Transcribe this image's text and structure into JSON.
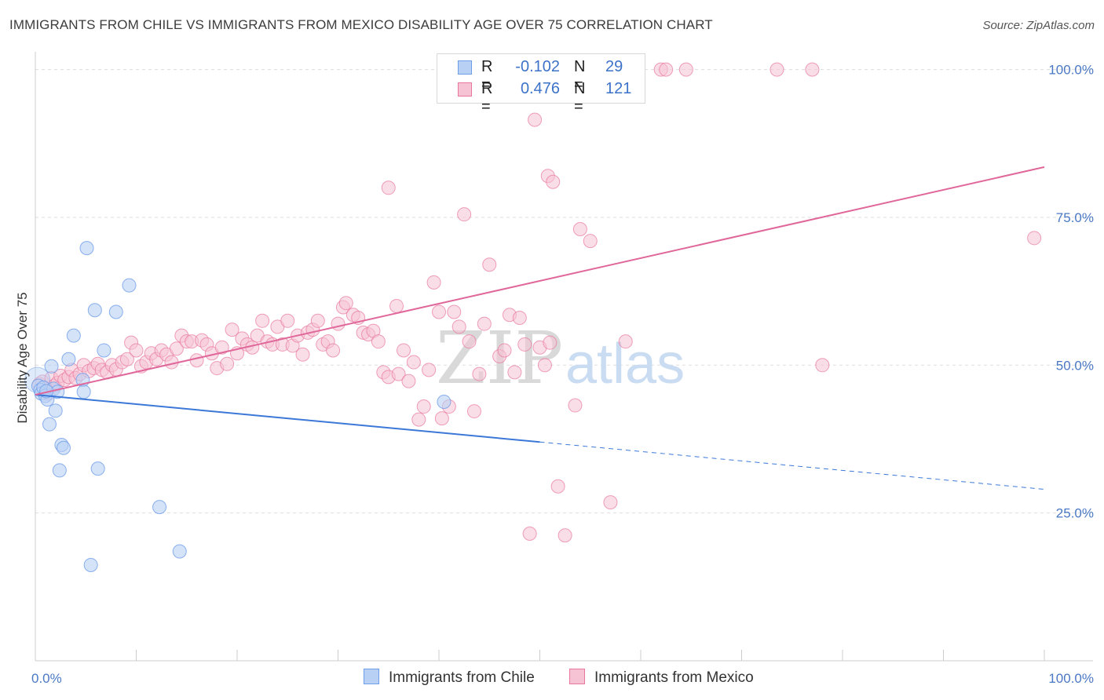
{
  "title": "IMMIGRANTS FROM CHILE VS IMMIGRANTS FROM MEXICO DISABILITY AGE OVER 75 CORRELATION CHART",
  "source": "Source: ZipAtlas.com",
  "watermark": {
    "part1": "ZIP",
    "part2": "atlas"
  },
  "legend": {
    "rows": [
      {
        "r_label": "R =",
        "r_value": "-0.102",
        "n_label": "N =",
        "n_value": "29"
      },
      {
        "r_label": "R =",
        "r_value": "0.476",
        "n_label": "N =",
        "n_value": "121"
      }
    ]
  },
  "colors": {
    "chile": "#6f9ee8",
    "chile_fill": "#b9d0f5",
    "mexico": "#e8779e",
    "mexico_fill": "#f6c3d4",
    "axis_text": "#4a78c4",
    "grid": "#dddddd"
  },
  "chart_data": {
    "type": "scatter",
    "title": "IMMIGRANTS FROM CHILE VS IMMIGRANTS FROM MEXICO DISABILITY AGE OVER 75 CORRELATION CHART",
    "xlabel": "",
    "ylabel": "Disability Age Over 75",
    "xlim": [
      0,
      100
    ],
    "ylim": [
      0,
      103
    ],
    "x_tick_labels": [
      "0.0%",
      "100.0%"
    ],
    "y_ticks": [
      25,
      50,
      75,
      100
    ],
    "y_tick_labels": [
      "25.0%",
      "50.0%",
      "75.0%",
      "100.0%"
    ],
    "legend_position": "bottom",
    "series": [
      {
        "name": "Immigrants from Chile",
        "r": -0.102,
        "n": 29,
        "trend": {
          "x0": 0,
          "y0": 45.0,
          "x1": 50,
          "y1": 37.0,
          "dashed_to_x": 100,
          "dashed_to_y": 29.0
        },
        "points": [
          [
            0.3,
            46.5
          ],
          [
            0.5,
            45.8
          ],
          [
            0.6,
            45.2
          ],
          [
            0.8,
            46.2
          ],
          [
            1.0,
            44.8
          ],
          [
            1.2,
            44.2
          ],
          [
            1.4,
            40.0
          ],
          [
            1.6,
            49.8
          ],
          [
            1.8,
            46.0
          ],
          [
            2.0,
            42.3
          ],
          [
            2.2,
            45.5
          ],
          [
            2.4,
            32.2
          ],
          [
            2.6,
            36.5
          ],
          [
            2.8,
            36.0
          ],
          [
            3.3,
            51.0
          ],
          [
            3.8,
            55.0
          ],
          [
            4.7,
            47.5
          ],
          [
            4.8,
            45.5
          ],
          [
            5.1,
            69.8
          ],
          [
            5.5,
            16.2
          ],
          [
            5.9,
            59.3
          ],
          [
            6.2,
            32.5
          ],
          [
            6.8,
            52.5
          ],
          [
            8.0,
            59.0
          ],
          [
            9.3,
            63.5
          ],
          [
            12.3,
            26.0
          ],
          [
            14.3,
            18.5
          ],
          [
            1.1,
            45.6
          ],
          [
            40.5,
            43.8
          ]
        ]
      },
      {
        "name": "Immigrants from Mexico",
        "r": 0.476,
        "n": 121,
        "trend": {
          "x0": 0,
          "y0": 45.0,
          "x1": 100,
          "y1": 83.5
        },
        "points": [
          [
            0.4,
            46.8
          ],
          [
            0.7,
            47.2
          ],
          [
            1.0,
            46.0
          ],
          [
            1.3,
            45.2
          ],
          [
            1.6,
            47.8
          ],
          [
            1.9,
            46.5
          ],
          [
            2.2,
            47.0
          ],
          [
            2.5,
            48.2
          ],
          [
            2.9,
            47.5
          ],
          [
            3.3,
            48.0
          ],
          [
            3.6,
            49.2
          ],
          [
            4.0,
            47.8
          ],
          [
            4.4,
            48.5
          ],
          [
            4.8,
            50.0
          ],
          [
            5.3,
            49.0
          ],
          [
            5.8,
            49.5
          ],
          [
            6.2,
            50.2
          ],
          [
            6.6,
            49.2
          ],
          [
            7.1,
            48.8
          ],
          [
            7.6,
            50.0
          ],
          [
            8.0,
            49.3
          ],
          [
            8.6,
            50.5
          ],
          [
            9.1,
            51.0
          ],
          [
            9.5,
            53.8
          ],
          [
            10.0,
            52.5
          ],
          [
            10.5,
            49.8
          ],
          [
            11.0,
            50.5
          ],
          [
            11.5,
            52.0
          ],
          [
            12.0,
            51.0
          ],
          [
            12.5,
            52.5
          ],
          [
            13.0,
            51.8
          ],
          [
            13.5,
            50.5
          ],
          [
            14.0,
            52.8
          ],
          [
            14.5,
            55.0
          ],
          [
            15.0,
            54.0
          ],
          [
            15.5,
            54.0
          ],
          [
            16.0,
            50.8
          ],
          [
            16.5,
            54.2
          ],
          [
            17.0,
            53.5
          ],
          [
            17.5,
            52.0
          ],
          [
            18.0,
            49.5
          ],
          [
            18.5,
            53.0
          ],
          [
            19.0,
            50.2
          ],
          [
            19.5,
            56.0
          ],
          [
            20.0,
            52.0
          ],
          [
            20.5,
            54.5
          ],
          [
            21.0,
            53.5
          ],
          [
            21.5,
            53.0
          ],
          [
            22.0,
            55.0
          ],
          [
            22.5,
            57.5
          ],
          [
            23.0,
            54.0
          ],
          [
            23.5,
            53.5
          ],
          [
            24.0,
            56.5
          ],
          [
            24.5,
            53.5
          ],
          [
            25.0,
            57.5
          ],
          [
            25.5,
            53.3
          ],
          [
            26.0,
            55.0
          ],
          [
            26.5,
            51.8
          ],
          [
            27.0,
            55.5
          ],
          [
            27.5,
            56.0
          ],
          [
            28.0,
            57.5
          ],
          [
            28.5,
            53.5
          ],
          [
            29.0,
            54.0
          ],
          [
            29.5,
            52.5
          ],
          [
            30.0,
            57.0
          ],
          [
            30.5,
            59.8
          ],
          [
            30.8,
            60.5
          ],
          [
            31.5,
            58.5
          ],
          [
            32.0,
            58.0
          ],
          [
            32.5,
            55.5
          ],
          [
            33.0,
            55.2
          ],
          [
            33.5,
            55.8
          ],
          [
            34.0,
            54.0
          ],
          [
            34.5,
            48.8
          ],
          [
            35.0,
            48.0
          ],
          [
            36.0,
            48.5
          ],
          [
            36.5,
            52.5
          ],
          [
            37.0,
            47.3
          ],
          [
            35.8,
            60.0
          ],
          [
            37.5,
            50.5
          ],
          [
            38.0,
            40.8
          ],
          [
            38.5,
            43.0
          ],
          [
            39.0,
            49.2
          ],
          [
            39.5,
            64.0
          ],
          [
            40.0,
            59.0
          ],
          [
            40.3,
            41.0
          ],
          [
            41.0,
            43.0
          ],
          [
            41.5,
            59.0
          ],
          [
            42.0,
            56.5
          ],
          [
            42.5,
            75.5
          ],
          [
            43.0,
            54.0
          ],
          [
            43.5,
            42.2
          ],
          [
            44.0,
            48.5
          ],
          [
            44.5,
            57.0
          ],
          [
            45.0,
            67.0
          ],
          [
            46.0,
            51.5
          ],
          [
            46.5,
            52.5
          ],
          [
            47.0,
            58.5
          ],
          [
            47.5,
            48.8
          ],
          [
            48.0,
            58.0
          ],
          [
            48.5,
            53.5
          ],
          [
            49.0,
            21.5
          ],
          [
            49.5,
            91.5
          ],
          [
            50.0,
            53.0
          ],
          [
            50.5,
            50.0
          ],
          [
            51.0,
            53.8
          ],
          [
            50.8,
            82.0
          ],
          [
            51.3,
            81.0
          ],
          [
            51.8,
            29.5
          ],
          [
            52.5,
            21.2
          ],
          [
            53.5,
            43.2
          ],
          [
            54.0,
            73.0
          ],
          [
            55.0,
            71.0
          ],
          [
            57.0,
            26.8
          ],
          [
            58.5,
            54.0
          ],
          [
            62.0,
            100.0
          ],
          [
            64.5,
            100.0
          ],
          [
            73.5,
            100.0
          ],
          [
            77.0,
            100.0
          ],
          [
            78.0,
            50.0
          ],
          [
            35.0,
            80.0
          ],
          [
            99.0,
            71.5
          ],
          [
            62.5,
            100.0
          ]
        ]
      }
    ]
  },
  "bottom_legend": [
    "Immigrants from Chile",
    "Immigrants from Mexico"
  ]
}
